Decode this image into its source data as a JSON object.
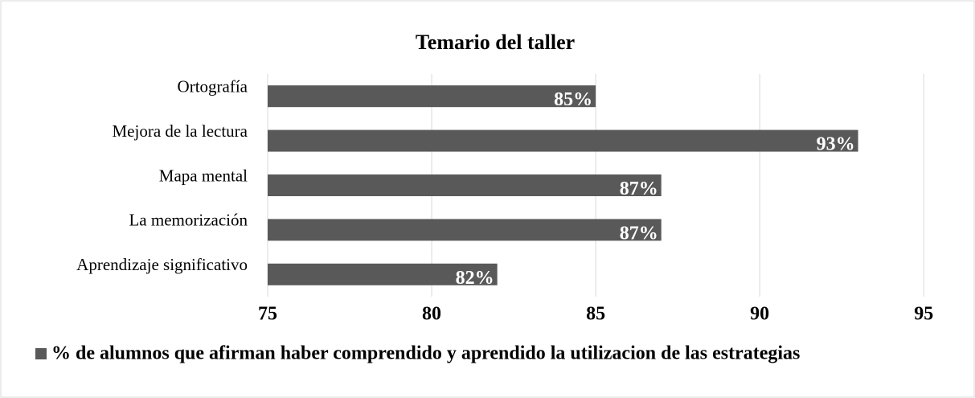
{
  "chart_data": {
    "type": "bar",
    "orientation": "horizontal",
    "title": "Temario del taller",
    "categories": [
      "Ortografía",
      "Mejora de la lectura",
      "Mapa mental",
      "La memorización",
      "Aprendizaje significativo"
    ],
    "series": [
      {
        "name": "% de alumnos que afirman haber comprendido y aprendido la utilizacion de las estrategias",
        "color": "#595959",
        "values": [
          85,
          93,
          87,
          87,
          82
        ],
        "value_labels": [
          "85%",
          "93%",
          "87%",
          "87%",
          "82%"
        ]
      }
    ],
    "xlim": [
      75,
      96
    ],
    "xticks": [
      75,
      80,
      85,
      90,
      95
    ],
    "grid": true,
    "legend": "bottom"
  }
}
